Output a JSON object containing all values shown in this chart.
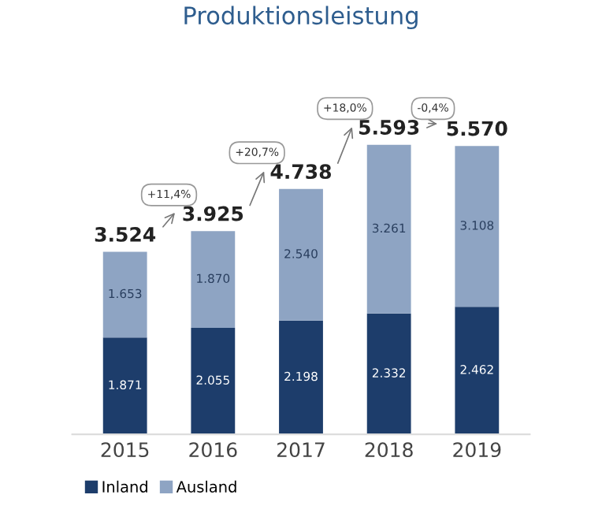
{
  "chart_data": {
    "type": "bar",
    "title": "Produktionsleistung",
    "stacked": true,
    "categories": [
      "2015",
      "2016",
      "2017",
      "2018",
      "2019"
    ],
    "series": [
      {
        "name": "Inland",
        "color": "#1d3d6b",
        "values": [
          1871,
          2055,
          2198,
          2332,
          2462
        ],
        "value_labels": [
          "1.871",
          "2.055",
          "2.198",
          "2.332",
          "2.462"
        ]
      },
      {
        "name": "Ausland",
        "color": "#8ea4c3",
        "values": [
          1653,
          1870,
          2540,
          3261,
          3108
        ],
        "value_labels": [
          "1.653",
          "1.870",
          "2.540",
          "3.261",
          "3.108"
        ]
      }
    ],
    "totals": [
      "3.524",
      "3.925",
      "4.738",
      "5.593",
      "5.570"
    ],
    "annotations": [
      "+11,4%",
      "+20,7%",
      "+18,0%",
      "-0,4%"
    ],
    "grid": false,
    "legend": "bottom left"
  }
}
